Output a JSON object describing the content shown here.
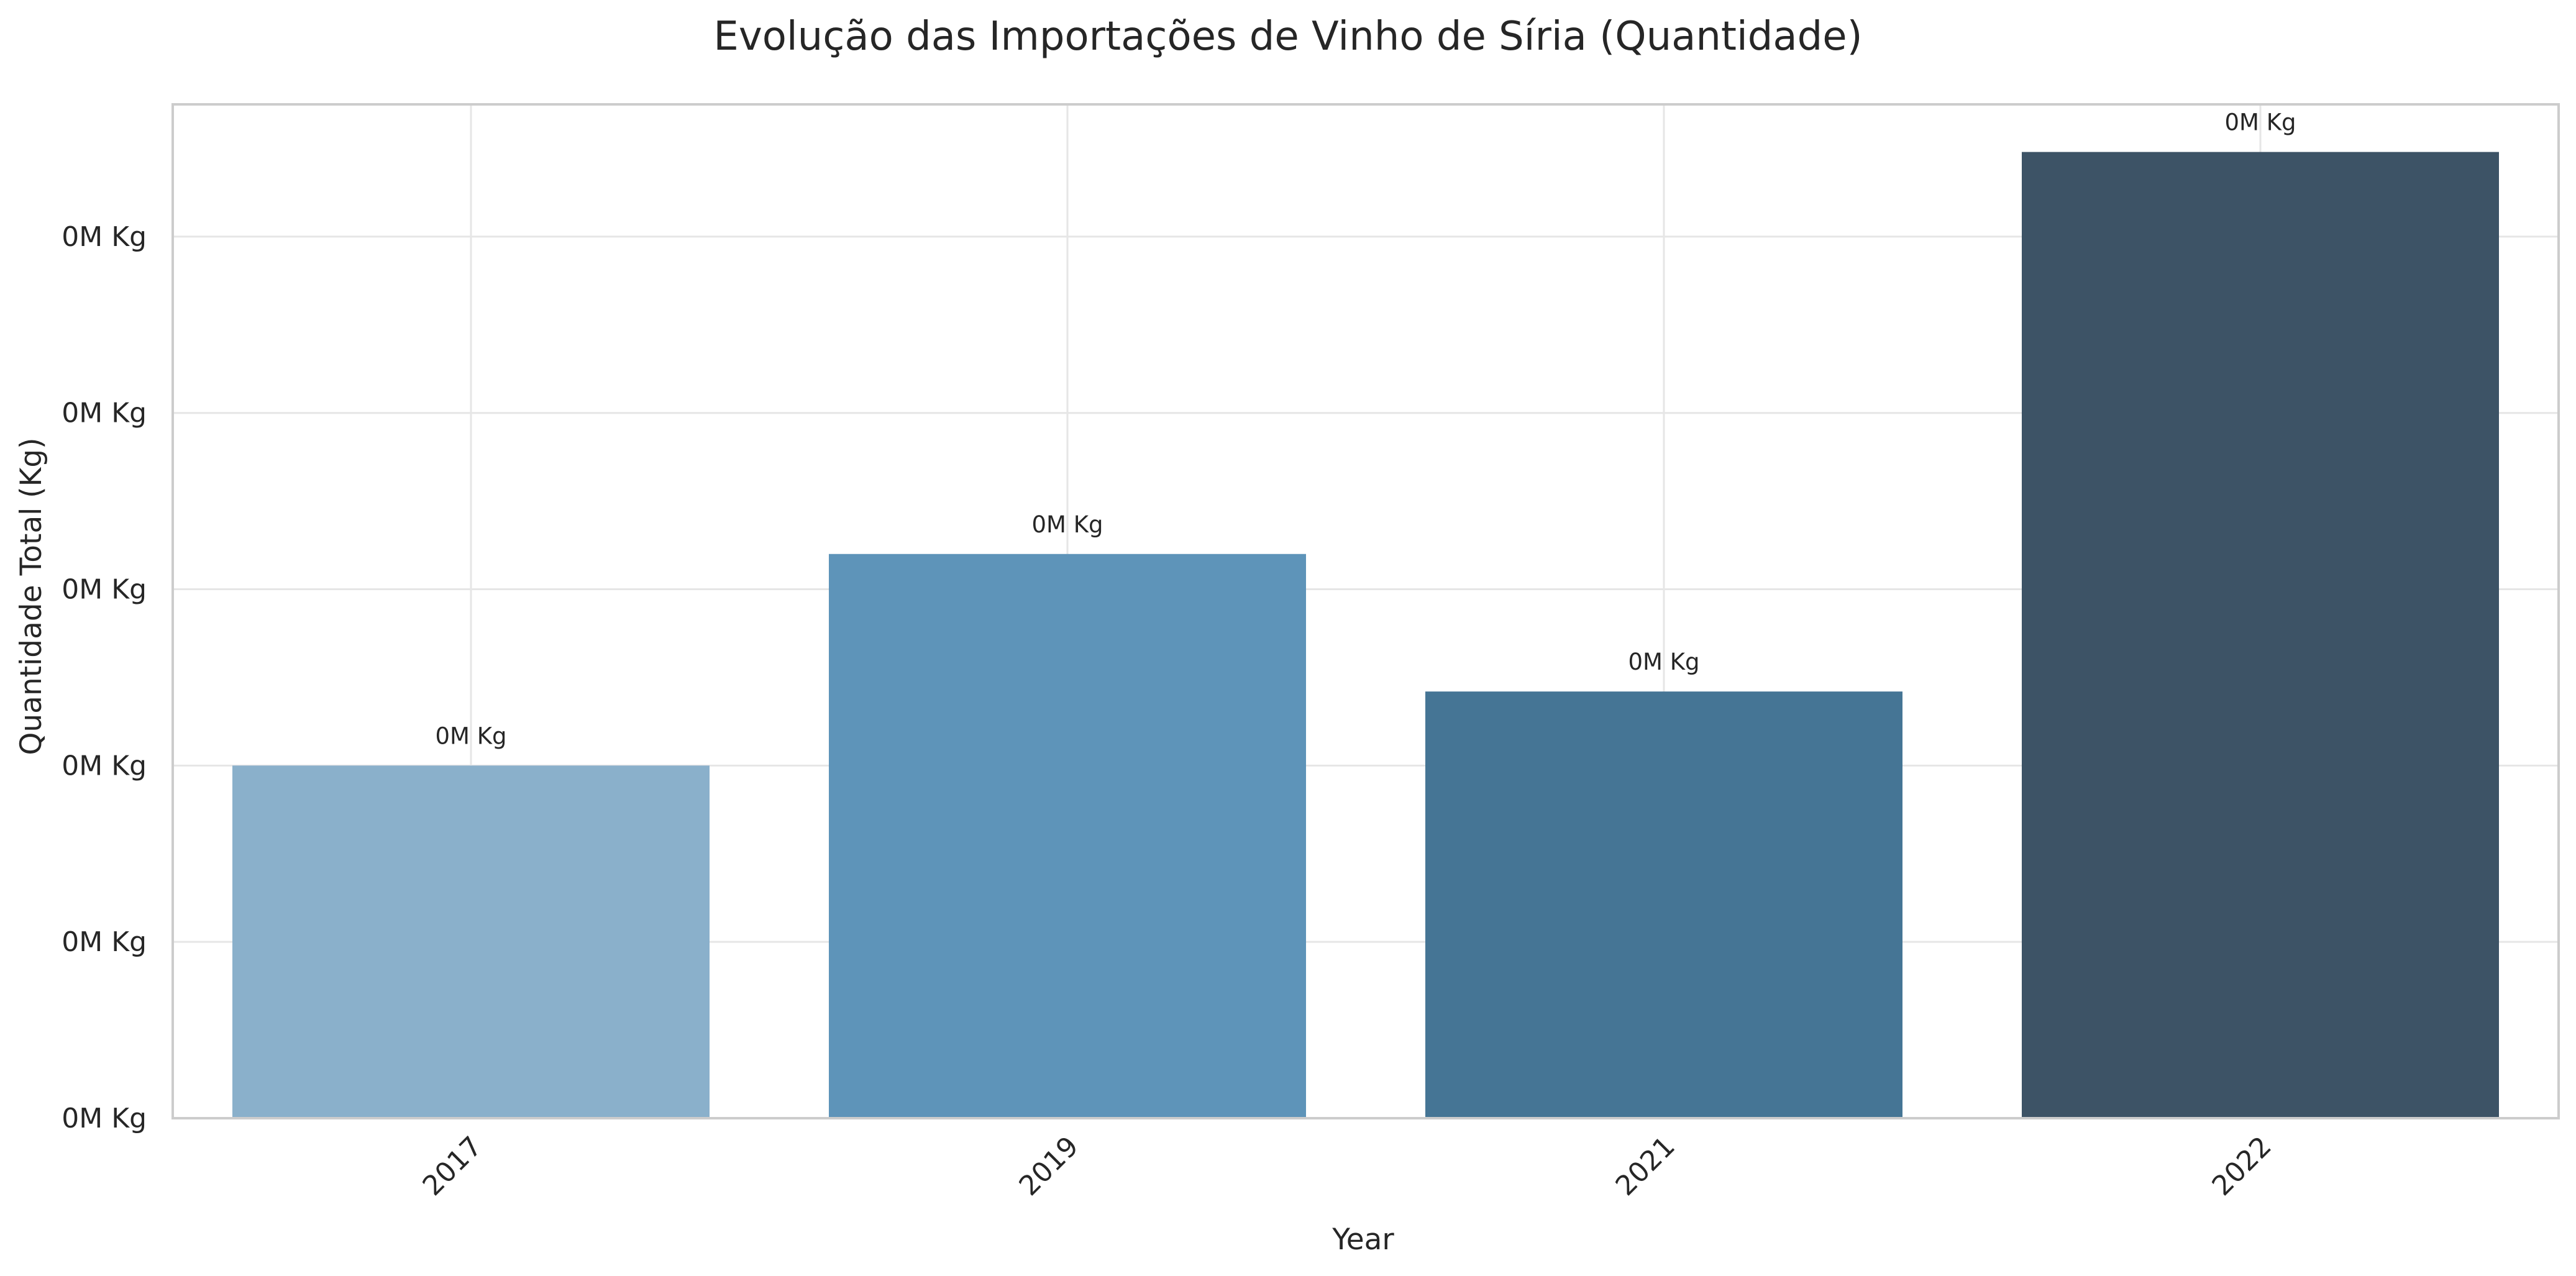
{
  "chart_data": {
    "type": "bar",
    "title": "Evolução das Importações de Vinho de Síria (Quantidade)",
    "xlabel": "Year",
    "ylabel": "Quantidade Total (Kg)",
    "categories": [
      "2017",
      "2019",
      "2021",
      "2022"
    ],
    "values": [
      200,
      320,
      242,
      548
    ],
    "value_labels": [
      "0M Kg",
      "0M Kg",
      "0M Kg",
      "0M Kg"
    ],
    "bar_colors": [
      "#8AB0CB",
      "#5E94B9",
      "#457595",
      "#3D5366"
    ],
    "yticks": [
      0,
      100,
      200,
      300,
      400,
      500
    ],
    "ytick_labels": [
      "0M Kg",
      "0M Kg",
      "0M Kg",
      "0M Kg",
      "0M Kg",
      "0M Kg"
    ],
    "ylim": [
      0,
      575
    ],
    "grid": true,
    "legend": "none",
    "x_tick_rotation": 45,
    "colors": {
      "grid": "#E6E6E6",
      "spine": "#CCCCCC",
      "text": "#262626"
    }
  }
}
